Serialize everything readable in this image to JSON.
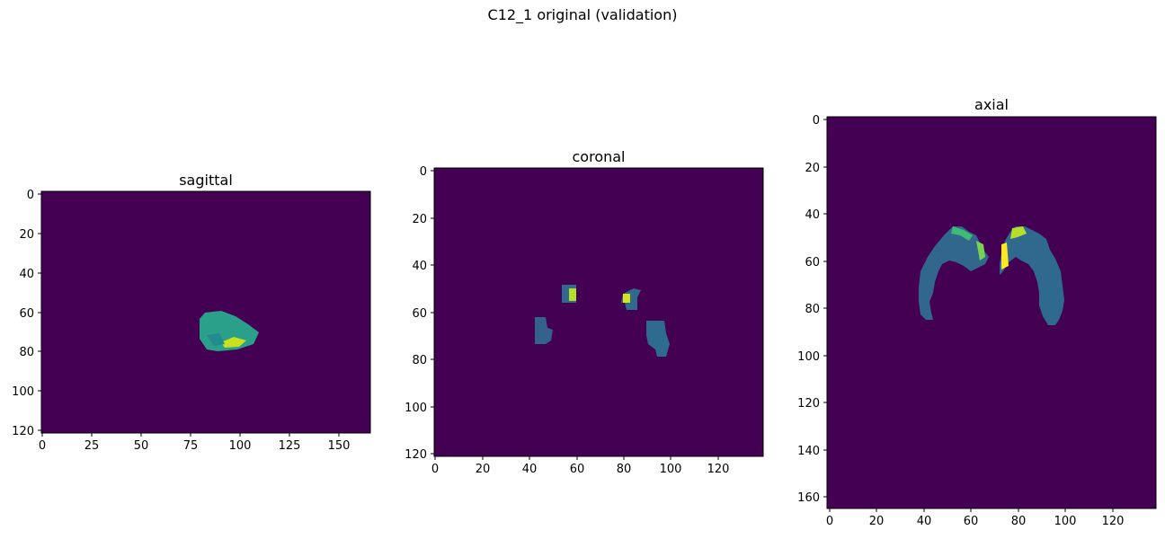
{
  "figure": {
    "title": "C12_1 original (validation)"
  },
  "colors": {
    "background": "#440154",
    "tissue": "#30688e",
    "mid": "#2ea383",
    "bright": "#fde725"
  },
  "panels": [
    {
      "id": "sagittal",
      "title": "sagittal",
      "x_ticks": [
        "0",
        "25",
        "50",
        "75",
        "100",
        "125",
        "150"
      ],
      "y_ticks": [
        "0",
        "20",
        "40",
        "60",
        "80",
        "100",
        "120"
      ]
    },
    {
      "id": "coronal",
      "title": "coronal",
      "x_ticks": [
        "0",
        "20",
        "40",
        "60",
        "80",
        "100",
        "120"
      ],
      "y_ticks": [
        "0",
        "20",
        "40",
        "60",
        "80",
        "100",
        "120"
      ]
    },
    {
      "id": "axial",
      "title": "axial",
      "x_ticks": [
        "0",
        "20",
        "40",
        "60",
        "80",
        "100",
        "120"
      ],
      "y_ticks": [
        "0",
        "20",
        "40",
        "60",
        "80",
        "100",
        "120",
        "140",
        "160"
      ]
    }
  ]
}
